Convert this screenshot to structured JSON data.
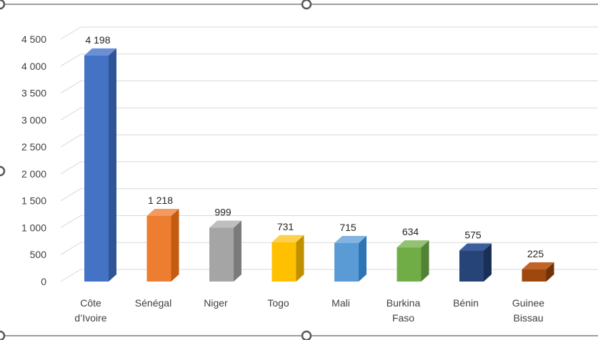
{
  "chart_data": {
    "type": "bar",
    "style": "3d-column",
    "title": "",
    "xlabel": "",
    "ylabel": "",
    "ylim": [
      0,
      4500
    ],
    "ytick_step": 500,
    "ytick_labels": [
      "0",
      "500",
      "1 000",
      "1 500",
      "2 000",
      "2 500",
      "3 000",
      "3 500",
      "4 000",
      "4 500"
    ],
    "grid": true,
    "legend": "none",
    "categories": [
      [
        "Côte",
        "d’Ivoire"
      ],
      [
        "Sénégal"
      ],
      [
        "Niger"
      ],
      [
        "Togo"
      ],
      [
        "Mali"
      ],
      [
        "Burkina",
        "Faso"
      ],
      [
        "Bénin"
      ],
      [
        "Guinee",
        "Bissau"
      ]
    ],
    "values": [
      4198,
      1218,
      999,
      731,
      715,
      634,
      575,
      225
    ],
    "value_labels": [
      "4 198",
      "1 218",
      "999",
      "731",
      "715",
      "634",
      "575",
      "225"
    ],
    "colors": [
      {
        "front": "#4472c4",
        "side": "#2f5597",
        "top": "#6a8fd3"
      },
      {
        "front": "#ed7d31",
        "side": "#c55a11",
        "top": "#f29a5f"
      },
      {
        "front": "#a5a5a5",
        "side": "#7b7b7b",
        "top": "#bfbfbf"
      },
      {
        "front": "#ffc000",
        "side": "#bf9000",
        "top": "#ffd04d"
      },
      {
        "front": "#5b9bd5",
        "side": "#2e75b6",
        "top": "#83b4e1"
      },
      {
        "front": "#70ad47",
        "side": "#548235",
        "top": "#93c372"
      },
      {
        "front": "#264478",
        "side": "#1a2f55",
        "top": "#3b5e9c"
      },
      {
        "front": "#9e480e",
        "side": "#6f3209",
        "top": "#c0652a"
      }
    ]
  }
}
